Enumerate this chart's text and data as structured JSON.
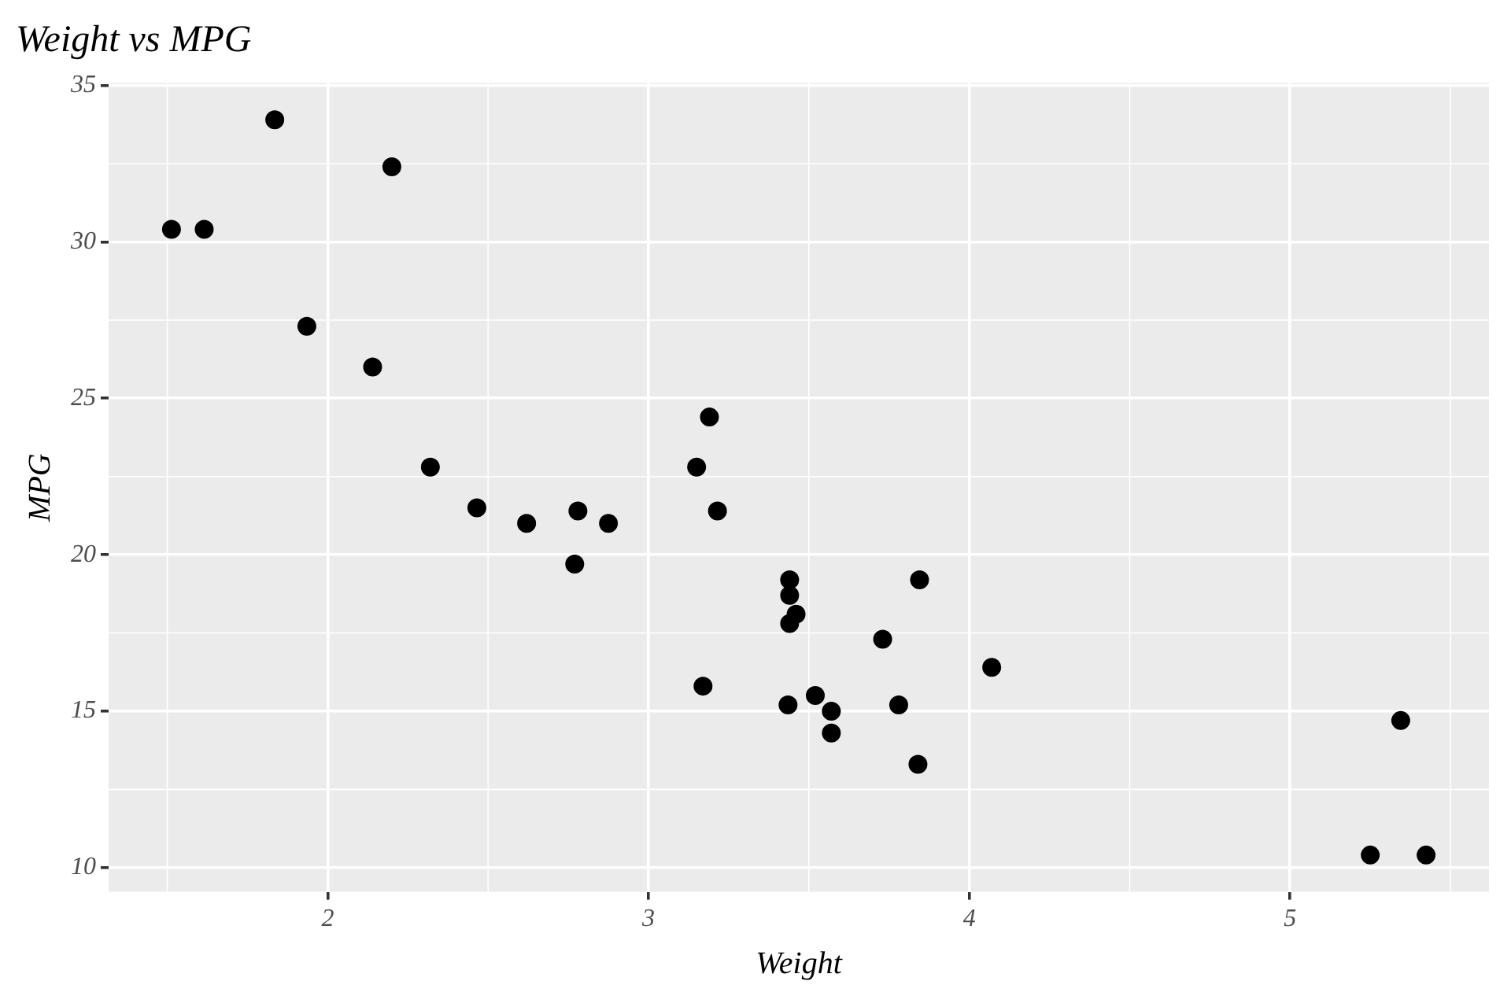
{
  "chart_data": {
    "type": "scatter",
    "title": "Weight vs MPG",
    "xlabel": "Weight",
    "ylabel": "MPG",
    "x": [
      2.62,
      2.875,
      2.32,
      3.215,
      3.44,
      3.46,
      3.57,
      3.19,
      3.15,
      3.44,
      3.44,
      4.07,
      3.73,
      3.78,
      5.25,
      5.424,
      5.345,
      2.2,
      1.615,
      1.835,
      2.465,
      3.52,
      3.435,
      3.84,
      3.845,
      1.935,
      2.14,
      1.513,
      3.17,
      2.77,
      3.57,
      2.78
    ],
    "series": [
      {
        "color": "#000000",
        "values": [
          21.0,
          21.0,
          22.8,
          21.4,
          18.7,
          18.1,
          14.3,
          24.4,
          22.8,
          19.2,
          17.8,
          16.4,
          17.3,
          15.2,
          10.4,
          10.4,
          14.7,
          32.4,
          30.4,
          33.9,
          21.5,
          15.5,
          15.2,
          13.3,
          19.2,
          27.3,
          26.0,
          30.4,
          15.8,
          19.7,
          15.0,
          21.4
        ]
      }
    ],
    "xlim": [
      1.317,
      5.62
    ],
    "ylim": [
      9.225,
      35.075
    ],
    "xticks": [
      2,
      3,
      4,
      5
    ],
    "yticks": [
      10,
      15,
      20,
      25,
      30,
      35
    ],
    "grid": true,
    "legend": false,
    "marker": "circle"
  }
}
